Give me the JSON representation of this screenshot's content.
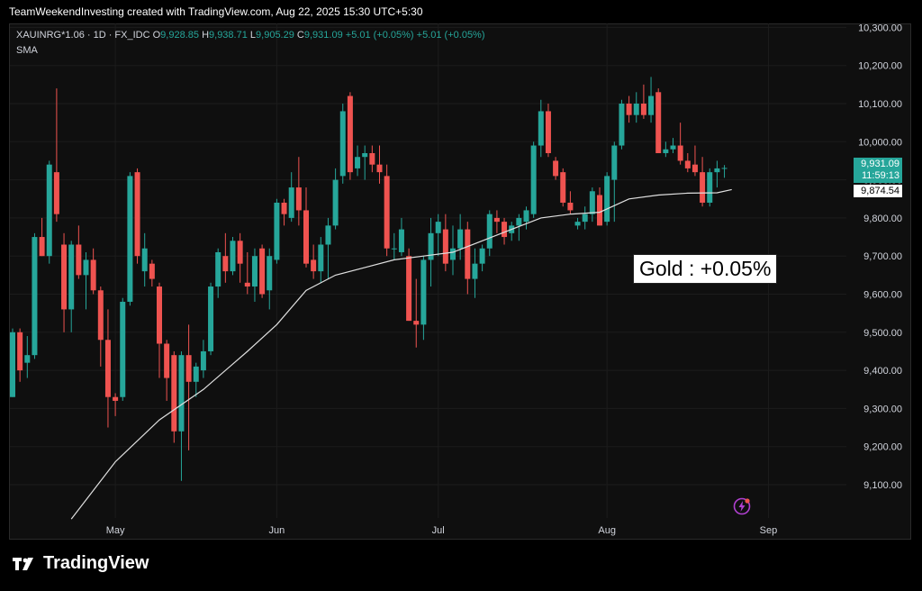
{
  "header": {
    "text": "TeamWeekendInvesting created with TradingView.com, Aug 22, 2025 15:30 UTC+5:30"
  },
  "legend": {
    "symbol": "XAUINRG*1.06 · 1D · FX_IDC",
    "o_label": "O",
    "o_value": "9,928.85",
    "h_label": "H",
    "h_value": "9,938.71",
    "l_label": "L",
    "l_value": "9,905.29",
    "c_label": "C",
    "c_value": "9,931.09",
    "change": "+5.01 (+0.05%)",
    "change2": "+5.01 (+0.05%)",
    "sma_label": "SMA"
  },
  "annotation": {
    "text": "Gold : +0.05%"
  },
  "badges": {
    "price": "9,931.09",
    "countdown": "11:59:13",
    "sma": "9,874.54"
  },
  "logo": {
    "text": "TradingView",
    "icon": "tradingview-logo-icon"
  },
  "colors": {
    "up": "#26a69a",
    "down": "#ef5350",
    "sma": "#e0e0e0",
    "background": "#0f0f0f"
  },
  "chart_data": {
    "type": "candlestick",
    "y_ticks": [
      9100,
      9200,
      9300,
      9400,
      9500,
      9600,
      9700,
      9800,
      9900,
      10000,
      10100,
      10200,
      10300
    ],
    "y_tick_labels": [
      "9,100.00",
      "9,200.00",
      "9,300.00",
      "9,400.00",
      "9,500.00",
      "9,600.00",
      "9,700.00",
      "9,800.00",
      "9,900.00",
      "10,000.00",
      "10,100.00",
      "10,200.00",
      "10,300.00"
    ],
    "ylim": [
      9000,
      10300
    ],
    "x_tick_labels": [
      {
        "label": "May",
        "index": 14
      },
      {
        "label": "Jun",
        "index": 36
      },
      {
        "label": "Jul",
        "index": 58
      },
      {
        "label": "Aug",
        "index": 81
      },
      {
        "label": "Sep",
        "index": 103
      }
    ],
    "candles": [
      {
        "o": 9330,
        "h": 9510,
        "l": 9330,
        "c": 9500
      },
      {
        "o": 9500,
        "h": 9510,
        "l": 9370,
        "c": 9400
      },
      {
        "o": 9420,
        "h": 9490,
        "l": 9380,
        "c": 9440
      },
      {
        "o": 9440,
        "h": 9760,
        "l": 9430,
        "c": 9750
      },
      {
        "o": 9750,
        "h": 9800,
        "l": 9700,
        "c": 9700
      },
      {
        "o": 9700,
        "h": 9950,
        "l": 9680,
        "c": 9940
      },
      {
        "o": 9920,
        "h": 10140,
        "l": 9790,
        "c": 9810
      },
      {
        "o": 9730,
        "h": 9760,
        "l": 9500,
        "c": 9560
      },
      {
        "o": 9560,
        "h": 9740,
        "l": 9500,
        "c": 9730
      },
      {
        "o": 9730,
        "h": 9780,
        "l": 9640,
        "c": 9650
      },
      {
        "o": 9650,
        "h": 9710,
        "l": 9560,
        "c": 9690
      },
      {
        "o": 9690,
        "h": 9720,
        "l": 9600,
        "c": 9610
      },
      {
        "o": 9610,
        "h": 9620,
        "l": 9410,
        "c": 9480
      },
      {
        "o": 9480,
        "h": 9560,
        "l": 9250,
        "c": 9330
      },
      {
        "o": 9330,
        "h": 9340,
        "l": 9280,
        "c": 9320
      },
      {
        "o": 9330,
        "h": 9590,
        "l": 9320,
        "c": 9580
      },
      {
        "o": 9580,
        "h": 9920,
        "l": 9570,
        "c": 9910
      },
      {
        "o": 9920,
        "h": 9930,
        "l": 9680,
        "c": 9700
      },
      {
        "o": 9660,
        "h": 9760,
        "l": 9620,
        "c": 9720
      },
      {
        "o": 9680,
        "h": 9690,
        "l": 9620,
        "c": 9640
      },
      {
        "o": 9620,
        "h": 9630,
        "l": 9380,
        "c": 9470
      },
      {
        "o": 9470,
        "h": 9480,
        "l": 9320,
        "c": 9380
      },
      {
        "o": 9440,
        "h": 9450,
        "l": 9210,
        "c": 9240
      },
      {
        "o": 9240,
        "h": 9450,
        "l": 9110,
        "c": 9440
      },
      {
        "o": 9440,
        "h": 9520,
        "l": 9190,
        "c": 9370
      },
      {
        "o": 9370,
        "h": 9420,
        "l": 9330,
        "c": 9410
      },
      {
        "o": 9400,
        "h": 9480,
        "l": 9380,
        "c": 9450
      },
      {
        "o": 9450,
        "h": 9630,
        "l": 9440,
        "c": 9620
      },
      {
        "o": 9620,
        "h": 9720,
        "l": 9590,
        "c": 9710
      },
      {
        "o": 9700,
        "h": 9760,
        "l": 9630,
        "c": 9660
      },
      {
        "o": 9660,
        "h": 9750,
        "l": 9650,
        "c": 9740
      },
      {
        "o": 9740,
        "h": 9760,
        "l": 9630,
        "c": 9680
      },
      {
        "o": 9630,
        "h": 9710,
        "l": 9600,
        "c": 9620
      },
      {
        "o": 9620,
        "h": 9720,
        "l": 9580,
        "c": 9700
      },
      {
        "o": 9720,
        "h": 9730,
        "l": 9590,
        "c": 9600
      },
      {
        "o": 9610,
        "h": 9720,
        "l": 9560,
        "c": 9700
      },
      {
        "o": 9690,
        "h": 9850,
        "l": 9680,
        "c": 9840
      },
      {
        "o": 9840,
        "h": 9850,
        "l": 9780,
        "c": 9810
      },
      {
        "o": 9800,
        "h": 9920,
        "l": 9790,
        "c": 9880
      },
      {
        "o": 9880,
        "h": 9960,
        "l": 9780,
        "c": 9820
      },
      {
        "o": 9820,
        "h": 9880,
        "l": 9670,
        "c": 9680
      },
      {
        "o": 9690,
        "h": 9730,
        "l": 9640,
        "c": 9660
      },
      {
        "o": 9660,
        "h": 9750,
        "l": 9630,
        "c": 9730
      },
      {
        "o": 9730,
        "h": 9800,
        "l": 9640,
        "c": 9780
      },
      {
        "o": 9780,
        "h": 9930,
        "l": 9770,
        "c": 9900
      },
      {
        "o": 9910,
        "h": 10100,
        "l": 9890,
        "c": 10080
      },
      {
        "o": 10120,
        "h": 10130,
        "l": 9900,
        "c": 9920
      },
      {
        "o": 9930,
        "h": 9990,
        "l": 9910,
        "c": 9960
      },
      {
        "o": 9960,
        "h": 9990,
        "l": 9900,
        "c": 9970
      },
      {
        "o": 9970,
        "h": 9990,
        "l": 9920,
        "c": 9940
      },
      {
        "o": 9940,
        "h": 9990,
        "l": 9890,
        "c": 9920
      },
      {
        "o": 9910,
        "h": 9940,
        "l": 9700,
        "c": 9720
      },
      {
        "o": 9720,
        "h": 9760,
        "l": 9690,
        "c": 9720
      },
      {
        "o": 9710,
        "h": 9800,
        "l": 9700,
        "c": 9770
      },
      {
        "o": 9700,
        "h": 9720,
        "l": 9530,
        "c": 9530
      },
      {
        "o": 9530,
        "h": 9640,
        "l": 9460,
        "c": 9520
      },
      {
        "o": 9520,
        "h": 9700,
        "l": 9480,
        "c": 9690
      },
      {
        "o": 9690,
        "h": 9800,
        "l": 9620,
        "c": 9760
      },
      {
        "o": 9760,
        "h": 9810,
        "l": 9700,
        "c": 9790
      },
      {
        "o": 9770,
        "h": 9810,
        "l": 9660,
        "c": 9680
      },
      {
        "o": 9690,
        "h": 9780,
        "l": 9650,
        "c": 9720
      },
      {
        "o": 9720,
        "h": 9810,
        "l": 9690,
        "c": 9770
      },
      {
        "o": 9770,
        "h": 9790,
        "l": 9600,
        "c": 9640
      },
      {
        "o": 9640,
        "h": 9720,
        "l": 9590,
        "c": 9680
      },
      {
        "o": 9680,
        "h": 9730,
        "l": 9660,
        "c": 9720
      },
      {
        "o": 9720,
        "h": 9820,
        "l": 9700,
        "c": 9810
      },
      {
        "o": 9800,
        "h": 9820,
        "l": 9760,
        "c": 9790
      },
      {
        "o": 9790,
        "h": 9800,
        "l": 9730,
        "c": 9750
      },
      {
        "o": 9760,
        "h": 9790,
        "l": 9740,
        "c": 9780
      },
      {
        "o": 9780,
        "h": 9810,
        "l": 9740,
        "c": 9800
      },
      {
        "o": 9790,
        "h": 9830,
        "l": 9770,
        "c": 9820
      },
      {
        "o": 9810,
        "h": 10000,
        "l": 9800,
        "c": 9990
      },
      {
        "o": 9990,
        "h": 10110,
        "l": 9960,
        "c": 10080
      },
      {
        "o": 10080,
        "h": 10100,
        "l": 9960,
        "c": 9970
      },
      {
        "o": 9950,
        "h": 9960,
        "l": 9900,
        "c": 9910
      },
      {
        "o": 9920,
        "h": 9930,
        "l": 9830,
        "c": 9840
      },
      {
        "o": 9840,
        "h": 9870,
        "l": 9810,
        "c": 9820
      },
      {
        "o": 9780,
        "h": 9800,
        "l": 9770,
        "c": 9790
      },
      {
        "o": 9790,
        "h": 9830,
        "l": 9770,
        "c": 9810
      },
      {
        "o": 9810,
        "h": 9880,
        "l": 9790,
        "c": 9870
      },
      {
        "o": 9860,
        "h": 9880,
        "l": 9780,
        "c": 9780
      },
      {
        "o": 9790,
        "h": 9920,
        "l": 9780,
        "c": 9910
      },
      {
        "o": 9900,
        "h": 10000,
        "l": 9790,
        "c": 9990
      },
      {
        "o": 9990,
        "h": 10110,
        "l": 9980,
        "c": 10100
      },
      {
        "o": 10100,
        "h": 10120,
        "l": 10050,
        "c": 10070
      },
      {
        "o": 10070,
        "h": 10130,
        "l": 10050,
        "c": 10100
      },
      {
        "o": 10100,
        "h": 10150,
        "l": 10060,
        "c": 10070
      },
      {
        "o": 10070,
        "h": 10170,
        "l": 10050,
        "c": 10120
      },
      {
        "o": 10130,
        "h": 10140,
        "l": 9970,
        "c": 9970
      },
      {
        "o": 9970,
        "h": 10000,
        "l": 9960,
        "c": 9980
      },
      {
        "o": 9980,
        "h": 10010,
        "l": 9970,
        "c": 9990
      },
      {
        "o": 9990,
        "h": 10050,
        "l": 9940,
        "c": 9950
      },
      {
        "o": 9950,
        "h": 9970,
        "l": 9920,
        "c": 9930
      },
      {
        "o": 9940,
        "h": 9990,
        "l": 9910,
        "c": 9920
      },
      {
        "o": 9920,
        "h": 9960,
        "l": 9830,
        "c": 9840
      },
      {
        "o": 9840,
        "h": 9930,
        "l": 9830,
        "c": 9920
      },
      {
        "o": 9920,
        "h": 9950,
        "l": 9880,
        "c": 9930
      },
      {
        "o": 9928.85,
        "h": 9938.71,
        "l": 9905.29,
        "c": 9931.09
      }
    ],
    "sma": [
      {
        "i": 8,
        "v": 9010
      },
      {
        "i": 14,
        "v": 9160
      },
      {
        "i": 20,
        "v": 9270
      },
      {
        "i": 26,
        "v": 9350
      },
      {
        "i": 32,
        "v": 9450
      },
      {
        "i": 36,
        "v": 9520
      },
      {
        "i": 40,
        "v": 9610
      },
      {
        "i": 44,
        "v": 9650
      },
      {
        "i": 48,
        "v": 9670
      },
      {
        "i": 52,
        "v": 9690
      },
      {
        "i": 56,
        "v": 9700
      },
      {
        "i": 60,
        "v": 9710
      },
      {
        "i": 64,
        "v": 9740
      },
      {
        "i": 68,
        "v": 9770
      },
      {
        "i": 72,
        "v": 9800
      },
      {
        "i": 76,
        "v": 9810
      },
      {
        "i": 80,
        "v": 9815
      },
      {
        "i": 84,
        "v": 9850
      },
      {
        "i": 88,
        "v": 9860
      },
      {
        "i": 92,
        "v": 9865
      },
      {
        "i": 96,
        "v": 9866
      },
      {
        "i": 98,
        "v": 9874.54
      }
    ]
  }
}
